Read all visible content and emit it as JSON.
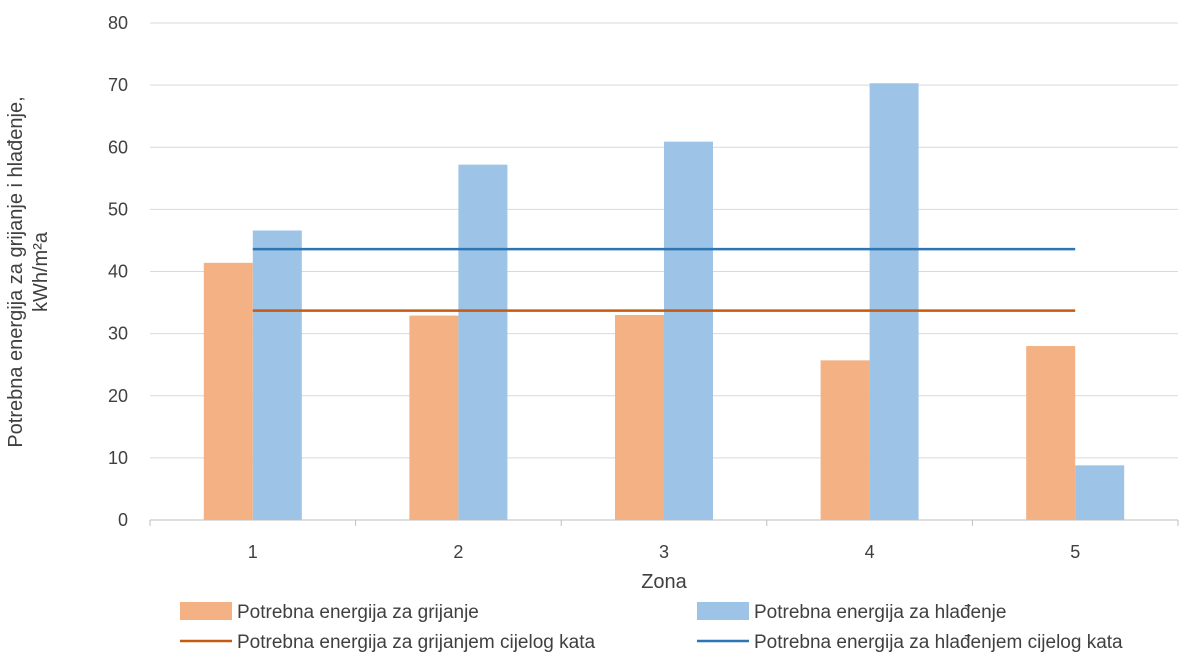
{
  "chart_data": {
    "type": "bar",
    "title": "",
    "xlabel": "Zona",
    "ylabel_line1": "Potrebna energija za grijanje i hlađenje,",
    "ylabel_line2": "kWh/m²a",
    "categories": [
      "1",
      "2",
      "3",
      "4",
      "5"
    ],
    "ylim": [
      0,
      80
    ],
    "yticks": [
      "0",
      "10",
      "20",
      "30",
      "40",
      "50",
      "60",
      "70",
      "80"
    ],
    "grid": true,
    "legend_position": "bottom",
    "series": [
      {
        "name": "Potrebna energija za grijanje",
        "kind": "bar",
        "color": "#F4B183",
        "values": [
          41.4,
          32.9,
          33.0,
          25.7,
          28.0
        ]
      },
      {
        "name": "Potrebna energija za hlađenje",
        "kind": "bar",
        "color": "#9DC3E6",
        "values": [
          46.6,
          57.2,
          60.9,
          70.3,
          8.8
        ]
      },
      {
        "name": "Potrebna energija za grijanjem cijelog kata",
        "kind": "line",
        "color": "#C55A11",
        "value": 33.7
      },
      {
        "name": "Potrebna energija za hlađenjem cijelog kata",
        "kind": "line",
        "color": "#2E75B6",
        "value": 43.6
      }
    ]
  }
}
